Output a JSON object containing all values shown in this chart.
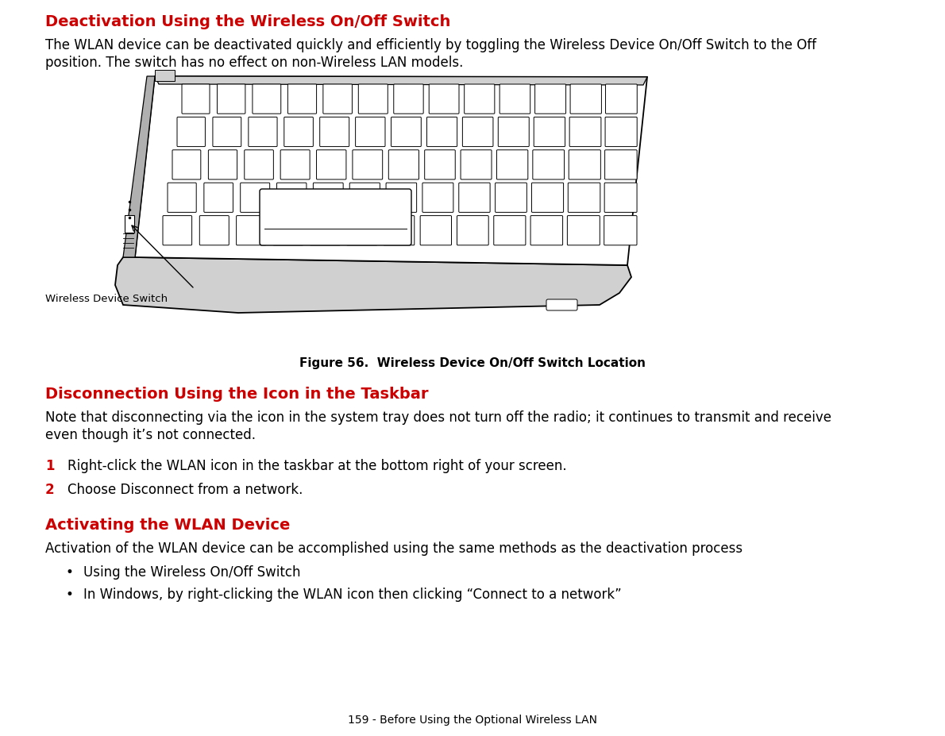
{
  "bg_color": "#ffffff",
  "text_color": "#000000",
  "red_color": "#cc0000",
  "font_family": "DejaVu Sans",
  "title1": "Deactivation Using the Wireless On/Off Switch",
  "para1_line1": "The WLAN device can be deactivated quickly and efficiently by toggling the Wireless Device On/Off Switch to the Off",
  "para1_line2": "position. The switch has no effect on non-Wireless LAN models.",
  "figure_caption": "Figure 56.  Wireless Device On/Off Switch Location",
  "section2_title": "Disconnection Using the Icon in the Taskbar",
  "para2_line1": "Note that disconnecting via the icon in the system tray does not turn off the radio; it continues to transmit and receive",
  "para2_line2": "even though it’s not connected.",
  "step1_num": "1",
  "step1_text": "Right-click the WLAN icon in the taskbar at the bottom right of your screen.",
  "step2_num": "2",
  "step2_text": "Choose Disconnect from a network.",
  "section3_title": "Activating the WLAN Device",
  "para3": "Activation of the WLAN device can be accomplished using the same methods as the deactivation process",
  "bullet1": "Using the Wireless On/Off Switch",
  "bullet2": "In Windows, by right-clicking the WLAN icon then clicking “Connect to a network”",
  "footer": "159 - Before Using the Optional Wireless LAN",
  "wireless_label": "Wireless Device Switch",
  "lm": 0.048,
  "title_fontsize": 14.0,
  "body_fontsize": 12.0,
  "caption_fontsize": 11.0,
  "footer_fontsize": 10.0
}
